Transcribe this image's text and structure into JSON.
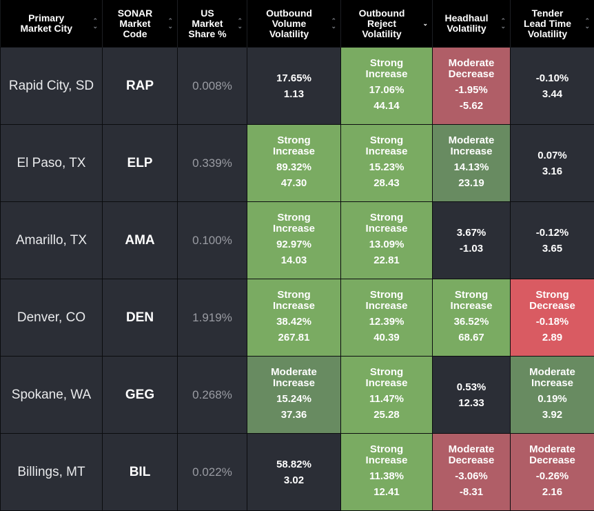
{
  "columns": [
    {
      "label": "Primary\nMarket City",
      "sort": "both"
    },
    {
      "label": "SONAR\nMarket\nCode",
      "sort": "both"
    },
    {
      "label": "US\nMarket\nShare %",
      "sort": "both"
    },
    {
      "label": "Outbound\nVolume\nVolatility",
      "sort": "both"
    },
    {
      "label": "Outbound\nReject\nVolatility",
      "sort": "desc"
    },
    {
      "label": "Headhaul\nVolatility",
      "sort": "both"
    },
    {
      "label": "Tender\nLead Time\nVolatility",
      "sort": "both"
    }
  ],
  "colors": {
    "strong_increase": "#7aab62",
    "moderate_increase": "#688b61",
    "moderate_decrease": "#b05e67",
    "strong_decrease": "#d95b62",
    "neutral": "#2b2e36",
    "header": "#000000"
  },
  "rows": [
    {
      "city": "Rapid City,\nSD",
      "code": "RAP",
      "share": "0.008%",
      "metrics": [
        {
          "label": "",
          "pct": "17.65%",
          "value": "1.13",
          "status": "neutral"
        },
        {
          "label": "Strong\nIncrease",
          "pct": "17.06%",
          "value": "44.14",
          "status": "strong_increase"
        },
        {
          "label": "Moderate\nDecrease",
          "pct": "-1.95%",
          "value": "-5.62",
          "status": "moderate_decrease"
        },
        {
          "label": "",
          "pct": "-0.10%",
          "value": "3.44",
          "status": "neutral"
        }
      ]
    },
    {
      "city": "El Paso, TX",
      "code": "ELP",
      "share": "0.339%",
      "metrics": [
        {
          "label": "Strong\nIncrease",
          "pct": "89.32%",
          "value": "47.30",
          "status": "strong_increase"
        },
        {
          "label": "Strong\nIncrease",
          "pct": "15.23%",
          "value": "28.43",
          "status": "strong_increase"
        },
        {
          "label": "Moderate\nIncrease",
          "pct": "14.13%",
          "value": "23.19",
          "status": "moderate_increase"
        },
        {
          "label": "",
          "pct": "0.07%",
          "value": "3.16",
          "status": "neutral"
        }
      ]
    },
    {
      "city": "Amarillo, TX",
      "code": "AMA",
      "share": "0.100%",
      "metrics": [
        {
          "label": "Strong\nIncrease",
          "pct": "92.97%",
          "value": "14.03",
          "status": "strong_increase"
        },
        {
          "label": "Strong\nIncrease",
          "pct": "13.09%",
          "value": "22.81",
          "status": "strong_increase"
        },
        {
          "label": "",
          "pct": "3.67%",
          "value": "-1.03",
          "status": "neutral"
        },
        {
          "label": "",
          "pct": "-0.12%",
          "value": "3.65",
          "status": "neutral"
        }
      ]
    },
    {
      "city": "Denver, CO",
      "code": "DEN",
      "share": "1.919%",
      "metrics": [
        {
          "label": "Strong\nIncrease",
          "pct": "38.42%",
          "value": "267.81",
          "status": "strong_increase"
        },
        {
          "label": "Strong\nIncrease",
          "pct": "12.39%",
          "value": "40.39",
          "status": "strong_increase"
        },
        {
          "label": "Strong\nIncrease",
          "pct": "36.52%",
          "value": "68.67",
          "status": "strong_increase"
        },
        {
          "label": "Strong\nDecrease",
          "pct": "-0.18%",
          "value": "2.89",
          "status": "strong_decrease"
        }
      ]
    },
    {
      "city": "Spokane, WA",
      "code": "GEG",
      "share": "0.268%",
      "metrics": [
        {
          "label": "Moderate\nIncrease",
          "pct": "15.24%",
          "value": "37.36",
          "status": "moderate_increase"
        },
        {
          "label": "Strong\nIncrease",
          "pct": "11.47%",
          "value": "25.28",
          "status": "strong_increase"
        },
        {
          "label": "",
          "pct": "0.53%",
          "value": "12.33",
          "status": "neutral"
        },
        {
          "label": "Moderate\nIncrease",
          "pct": "0.19%",
          "value": "3.92",
          "status": "moderate_increase"
        }
      ]
    },
    {
      "city": "Billings, MT",
      "code": "BIL",
      "share": "0.022%",
      "metrics": [
        {
          "label": "",
          "pct": "58.82%",
          "value": "3.02",
          "status": "neutral"
        },
        {
          "label": "Strong\nIncrease",
          "pct": "11.38%",
          "value": "12.41",
          "status": "strong_increase"
        },
        {
          "label": "Moderate\nDecrease",
          "pct": "-3.06%",
          "value": "-8.31",
          "status": "moderate_decrease"
        },
        {
          "label": "Moderate\nDecrease",
          "pct": "-0.26%",
          "value": "2.16",
          "status": "moderate_decrease"
        }
      ]
    }
  ]
}
